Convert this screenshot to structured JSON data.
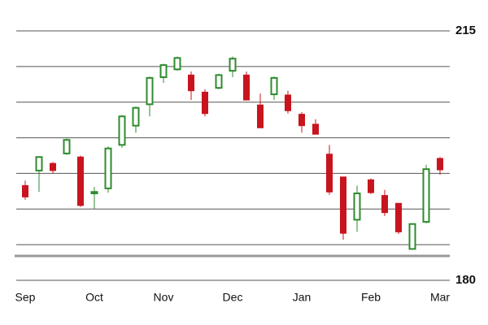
{
  "chart_data": {
    "type": "candlestick",
    "categories": [
      "Sep",
      null,
      null,
      null,
      null,
      "Oct",
      null,
      null,
      null,
      null,
      "Nov",
      null,
      null,
      null,
      null,
      "Dec",
      null,
      null,
      null,
      null,
      "Jan",
      null,
      null,
      null,
      null,
      "Feb",
      null,
      null,
      null,
      null,
      "Mar"
    ],
    "open": [
      193.3,
      195.4,
      196.4,
      197.8,
      197.3,
      192.2,
      192.9,
      199.0,
      201.7,
      204.7,
      208.5,
      209.6,
      208.8,
      206.4,
      207.0,
      209.4,
      208.8,
      204.6,
      206.1,
      206.0,
      203.3,
      201.9,
      197.7,
      194.5,
      188.5,
      194.1,
      191.9,
      190.8,
      184.4,
      188.2,
      197.1
    ],
    "high": [
      194.0,
      197.4,
      196.6,
      199.9,
      197.5,
      193.1,
      198.8,
      203.2,
      204.4,
      208.6,
      210.4,
      211.4,
      209.3,
      206.8,
      209.0,
      211.4,
      209.3,
      206.2,
      208.6,
      206.6,
      203.6,
      202.6,
      199.0,
      194.5,
      193.3,
      194.3,
      192.7,
      190.8,
      187.9,
      196.2,
      197.3
    ],
    "low": [
      191.3,
      192.4,
      195.0,
      197.6,
      190.3,
      190.0,
      192.3,
      198.6,
      200.7,
      203.0,
      207.7,
      209.4,
      205.3,
      203.0,
      206.8,
      208.5,
      205.3,
      201.4,
      205.3,
      203.4,
      200.7,
      200.5,
      192.0,
      185.7,
      186.8,
      192.1,
      189.0,
      186.5,
      184.4,
      188.0,
      194.8
    ],
    "close": [
      191.7,
      197.3,
      195.4,
      199.7,
      190.5,
      192.4,
      198.5,
      203.0,
      204.2,
      208.4,
      210.2,
      211.2,
      206.6,
      203.4,
      208.8,
      211.1,
      205.3,
      201.4,
      208.4,
      203.8,
      201.7,
      200.5,
      192.4,
      186.6,
      192.2,
      192.3,
      189.5,
      186.8,
      187.9,
      195.6,
      195.5
    ],
    "up_color": "#2e8b2e",
    "down_color": "#c8141e",
    "ylim": [
      180,
      215
    ],
    "yticks": [
      215,
      180
    ],
    "minor_yticks": [
      210,
      205,
      200,
      195,
      190,
      185
    ],
    "grid": true
  }
}
